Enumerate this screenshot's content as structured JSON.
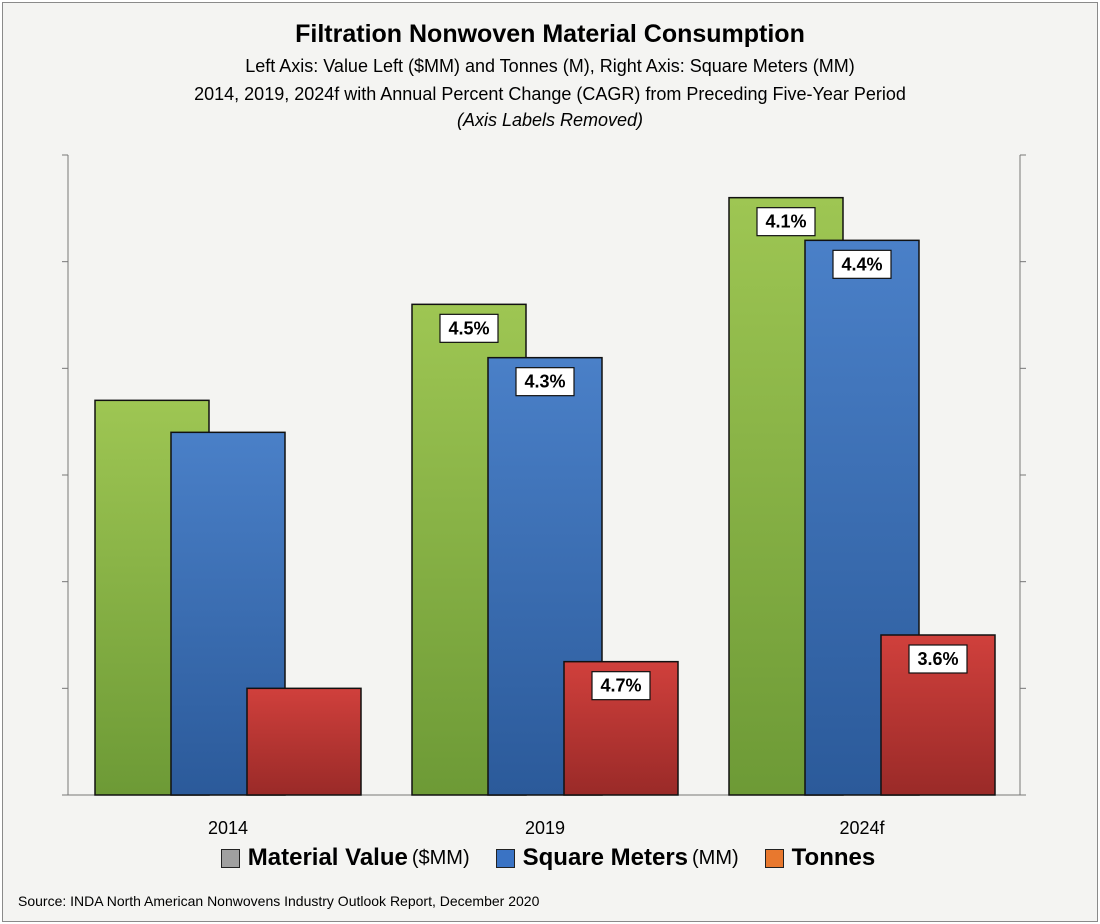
{
  "title": "Filtration Nonwoven Material Consumption",
  "subtitle_lines": [
    "Left Axis: Value Left ($MM) and Tonnes (M), Right Axis: Square Meters (MM)",
    "2014, 2019, 2024f with Annual Percent Change (CAGR) from Preceding Five-Year Period",
    "(Axis Labels Removed)"
  ],
  "legend": [
    {
      "name": "Material Value",
      "unit": "($MM)",
      "color": "#a0a0a0"
    },
    {
      "name": "Square Meters",
      "unit": "(MM)",
      "color": "#3a73c4"
    },
    {
      "name": "Tonnes",
      "unit": "",
      "color": "#e8782e"
    }
  ],
  "source": "Source: INDA North American Nonwovens Industry Outlook Report, December 2020",
  "chart_data": {
    "type": "bar",
    "categories": [
      "2014",
      "2019",
      "2024f"
    ],
    "axis_note": "Axis values are unlabeled; values are relative bar heights on a 0-6 scale (six unlabeled gridline ticks).",
    "ylim": [
      0,
      6
    ],
    "grid": false,
    "series": [
      {
        "name": "Material Value",
        "axis": "left",
        "color_top": "#9ec653",
        "color_bottom": "#6d9a36",
        "values": [
          3.7,
          4.6,
          5.6
        ],
        "labels": [
          "",
          "4.5%",
          "4.1%"
        ]
      },
      {
        "name": "Square Meters",
        "axis": "right",
        "color_top": "#4a80c8",
        "color_bottom": "#2b5a9a",
        "values": [
          3.4,
          4.1,
          5.2
        ],
        "labels": [
          "",
          "4.3%",
          "4.4%"
        ]
      },
      {
        "name": "Tonnes",
        "axis": "left",
        "color_top": "#d0403c",
        "color_bottom": "#9a2a28",
        "values": [
          1.0,
          1.25,
          1.5
        ],
        "labels": [
          "",
          "4.7%",
          "3.6%"
        ]
      }
    ]
  }
}
